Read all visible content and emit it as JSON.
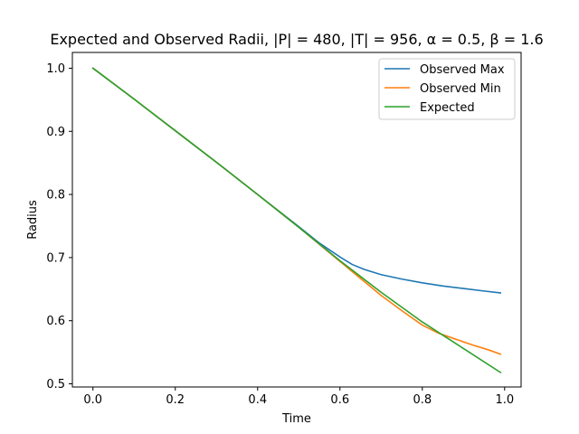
{
  "chart_data": {
    "type": "line",
    "title": "Expected and Observed Radii, |P| = 480, |T| = 956, α = 0.5, β = 1.6",
    "xlabel": "Time",
    "ylabel": "Radius",
    "xlim": [
      -0.05,
      1.04
    ],
    "ylim": [
      0.495,
      1.025
    ],
    "x_ticks": [
      0.0,
      0.2,
      0.4,
      0.6,
      0.8,
      1.0
    ],
    "x_tick_labels": [
      "0.0",
      "0.2",
      "0.4",
      "0.6",
      "0.8",
      "1.0"
    ],
    "y_ticks": [
      0.5,
      0.6,
      0.7,
      0.8,
      0.9,
      1.0
    ],
    "y_tick_labels": [
      "0.5",
      "0.6",
      "0.7",
      "0.8",
      "0.9",
      "1.0"
    ],
    "grid": false,
    "legend_position": "top-right",
    "series": [
      {
        "name": "Observed Max",
        "color": "#1f77b4",
        "x": [
          0.0,
          0.1,
          0.2,
          0.3,
          0.4,
          0.5,
          0.55,
          0.6,
          0.63,
          0.66,
          0.7,
          0.75,
          0.8,
          0.85,
          0.9,
          0.95,
          0.99
        ],
        "y": [
          1.0,
          0.951,
          0.901,
          0.851,
          0.8,
          0.749,
          0.723,
          0.701,
          0.689,
          0.681,
          0.673,
          0.666,
          0.66,
          0.655,
          0.651,
          0.647,
          0.644
        ]
      },
      {
        "name": "Observed Min",
        "color": "#ff7f0e",
        "x": [
          0.0,
          0.1,
          0.2,
          0.3,
          0.4,
          0.5,
          0.6,
          0.7,
          0.75,
          0.8,
          0.84,
          0.88,
          0.92,
          0.96,
          0.99
        ],
        "y": [
          1.0,
          0.951,
          0.901,
          0.851,
          0.8,
          0.748,
          0.694,
          0.64,
          0.616,
          0.593,
          0.58,
          0.571,
          0.562,
          0.554,
          0.547
        ]
      },
      {
        "name": "Expected",
        "color": "#2ca02c",
        "x": [
          0.0,
          0.1,
          0.2,
          0.3,
          0.4,
          0.5,
          0.6,
          0.7,
          0.8,
          0.9,
          0.99
        ],
        "y": [
          1.0,
          0.951,
          0.901,
          0.851,
          0.8,
          0.748,
          0.695,
          0.645,
          0.598,
          0.556,
          0.518
        ]
      }
    ]
  }
}
